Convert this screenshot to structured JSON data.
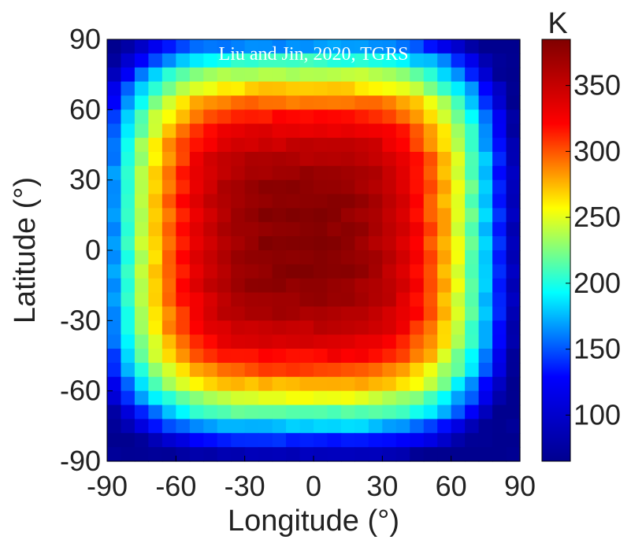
{
  "chart_data": {
    "type": "heatmap",
    "annotation": "Liu and Jin, 2020, TGRS",
    "xlabel": "Longitude (°)",
    "ylabel": "Latitude (°)",
    "xlim": [
      -90,
      90
    ],
    "ylim": [
      -90,
      90
    ],
    "xticks": [
      -90,
      -60,
      -30,
      0,
      30,
      60,
      90
    ],
    "yticks": [
      90,
      60,
      30,
      0,
      -30,
      -60,
      -90
    ],
    "grid_size": 30,
    "colorbar": {
      "unit": "K",
      "range": [
        65,
        385
      ],
      "ticks": [
        100,
        150,
        200,
        250,
        300,
        350
      ],
      "colormap": [
        "#00008f",
        "#0000ff",
        "#00ffff",
        "#ffff00",
        "#ff0000",
        "#800000"
      ]
    },
    "surface_model": {
      "description": "Surface temperature heatmap, highest near center, decreasing toward the square edges",
      "max_K": 383,
      "min_K": 65,
      "hot_center_lon": -5,
      "hot_center_lat": 5
    }
  }
}
